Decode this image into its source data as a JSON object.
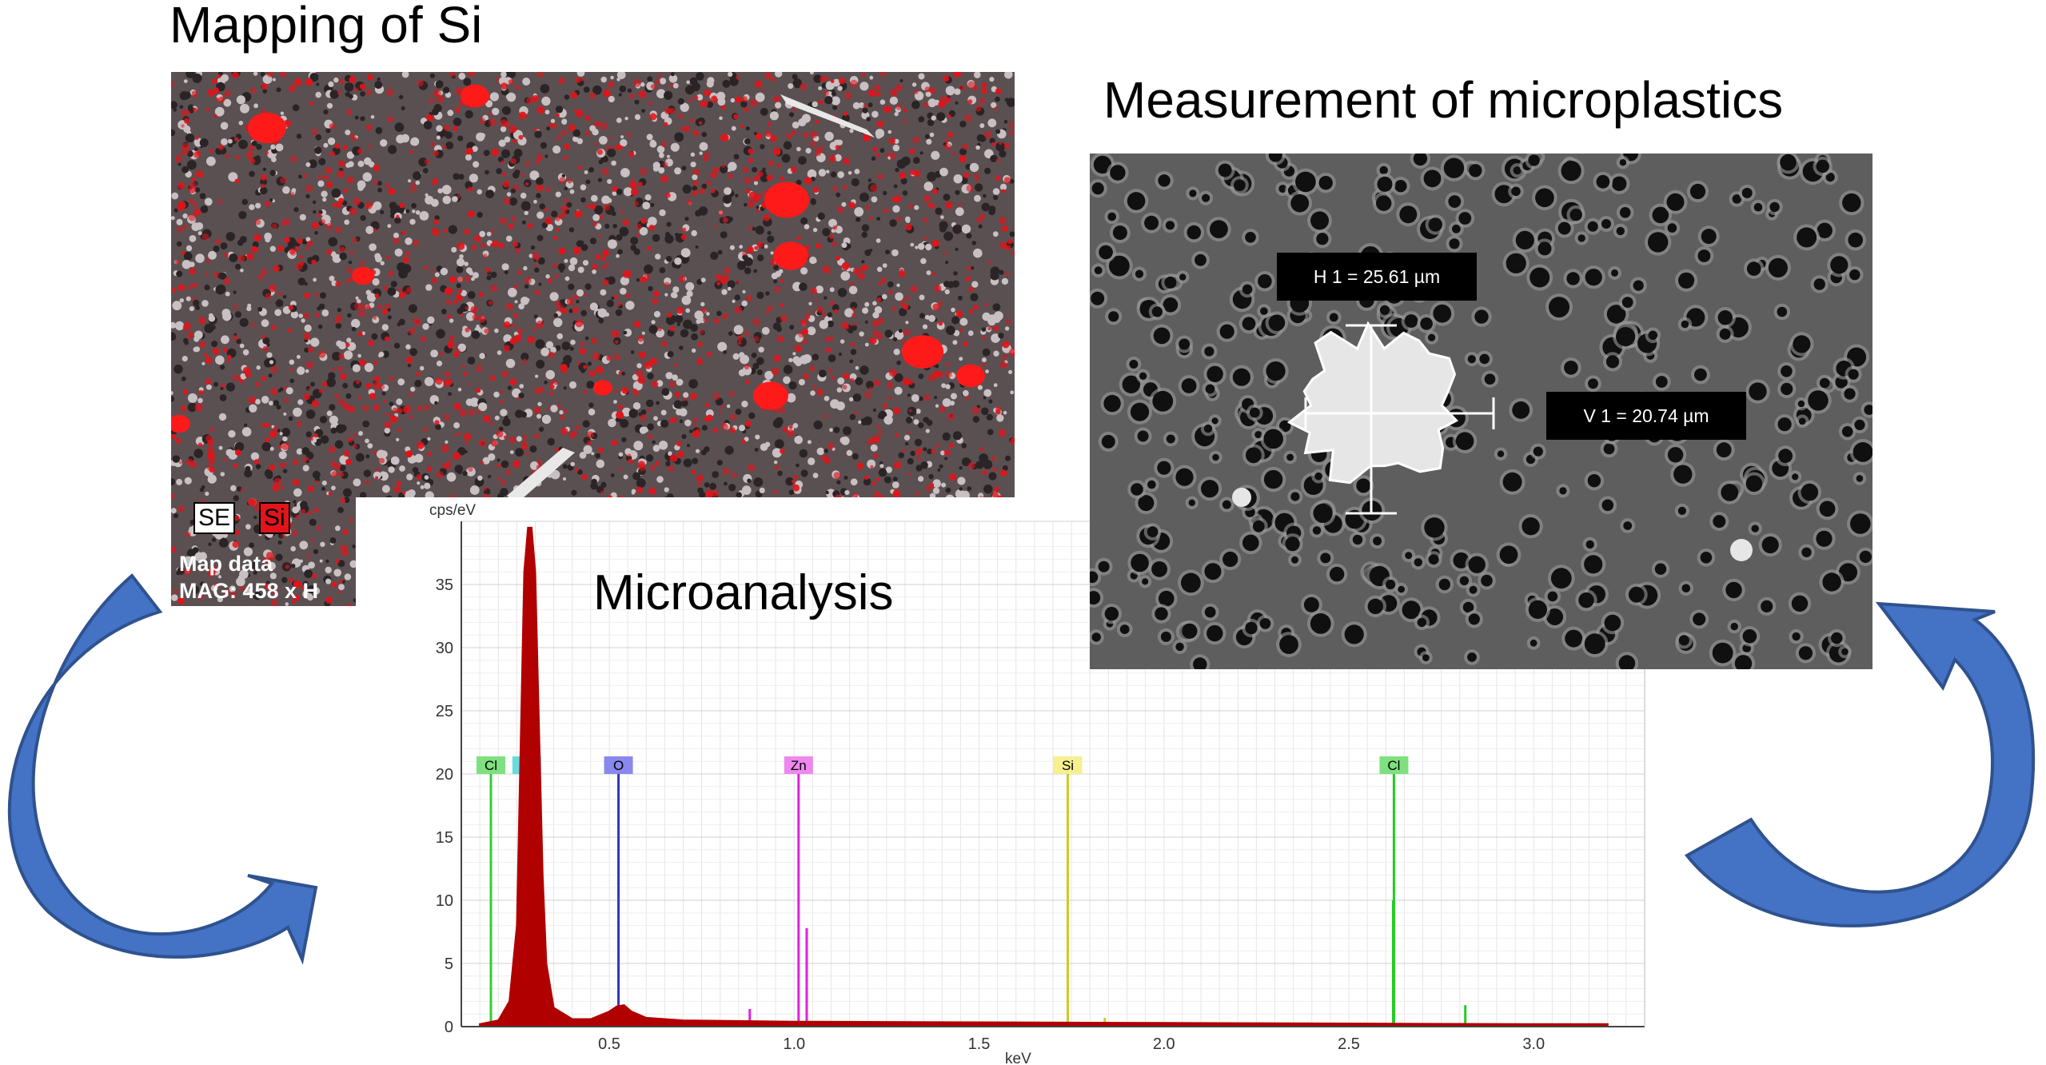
{
  "titles": {
    "mapping": "Mapping of Si",
    "measurement": "Measurement of microplastics",
    "microanalysis": "Microanalysis"
  },
  "map_panel": {
    "legend": [
      "SE",
      "Si"
    ],
    "info_line1": "Map data",
    "info_line2": "MAG: 458 x  H"
  },
  "measurement_panel": {
    "horizontal_label": "H 1 = 25.61 µm",
    "vertical_label": "V 1 = 20.74 µm"
  },
  "colors": {
    "arrow_blue": "#4472c4",
    "spectrum_red": "#b10000",
    "si_red": "#e0141a"
  },
  "chart_data": {
    "type": "line",
    "y_unit_label": "cps/eV",
    "xlabel": "keV",
    "xlim": [
      0.1,
      3.3
    ],
    "ylim": [
      0,
      40
    ],
    "x_ticks": [
      0.5,
      1.0,
      1.5,
      2.0,
      2.5,
      3.0
    ],
    "x_tick_labels": [
      "0.5",
      "1.0",
      "1.5",
      "2.0",
      "2.5",
      "3.0"
    ],
    "y_ticks": [
      0,
      5,
      10,
      15,
      20,
      25,
      30,
      35
    ],
    "grid": true,
    "series": [
      {
        "color": "#b10000",
        "x": [
          0.15,
          0.2,
          0.23,
          0.25,
          0.26,
          0.27,
          0.28,
          0.29,
          0.3,
          0.31,
          0.32,
          0.33,
          0.35,
          0.4,
          0.45,
          0.5,
          0.52,
          0.54,
          0.56,
          0.6,
          0.7,
          1.0,
          1.5,
          2.0,
          2.5,
          3.0,
          3.2
        ],
        "y": [
          0.2,
          0.5,
          2,
          8,
          22,
          36,
          39.5,
          39.5,
          36,
          24,
          12,
          5,
          1.5,
          0.6,
          0.6,
          1.2,
          1.6,
          1.7,
          1.2,
          0.7,
          0.5,
          0.4,
          0.35,
          0.3,
          0.25,
          0.2,
          0.2
        ]
      }
    ],
    "element_markers": [
      {
        "label": "Cl",
        "x": 0.18,
        "height": 20,
        "color": "#33cc33",
        "bg": "#7fe07f"
      },
      {
        "label": "C",
        "x": 0.277,
        "height": 20,
        "color": "#33aaaa",
        "bg": "#66dddd"
      },
      {
        "label": "O",
        "x": 0.525,
        "height": 20,
        "color": "#3333bb",
        "bg": "#8888ee"
      },
      {
        "label": "Zn",
        "x": 1.012,
        "height": 20,
        "color": "#dd22dd",
        "bg": "#ee88ee"
      },
      {
        "label": "Si",
        "x": 1.74,
        "height": 20,
        "color": "#cccc22",
        "bg": "#f5f090"
      },
      {
        "label": "Cl",
        "x": 2.622,
        "height": 20,
        "color": "#22cc22",
        "bg": "#7fe07f"
      }
    ],
    "minor_lines": [
      {
        "x": 0.232,
        "height": 1.3,
        "color": "#22cc22"
      },
      {
        "x": 0.88,
        "height": 1.4,
        "color": "#dd22dd"
      },
      {
        "x": 1.034,
        "height": 7.8,
        "color": "#dd22dd"
      },
      {
        "x": 1.84,
        "height": 0.7,
        "color": "#cccc22"
      },
      {
        "x": 2.62,
        "height": 10,
        "color": "#22cc22"
      },
      {
        "x": 2.815,
        "height": 1.7,
        "color": "#22cc22"
      }
    ]
  }
}
